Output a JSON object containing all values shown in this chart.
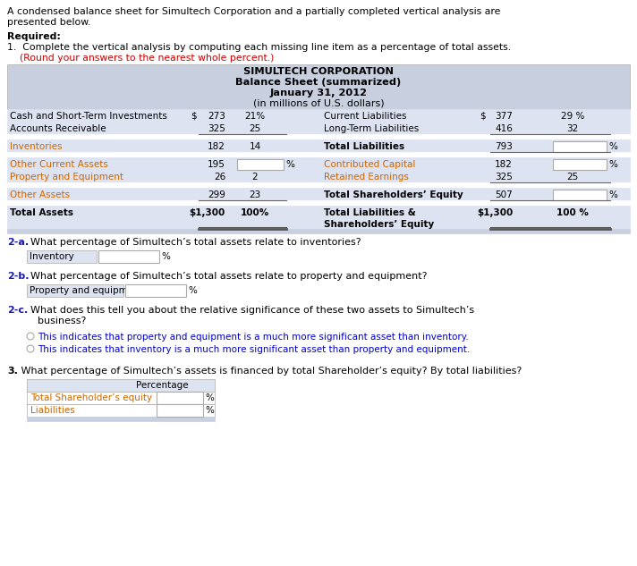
{
  "bg_color": "#ffffff",
  "header_bg": "#c8d0e0",
  "row_bg": "#dde3f0",
  "white": "#ffffff",
  "border_color": "#aaaaaa",
  "dark_border": "#666666",
  "text_black": "#000000",
  "text_blue_bold": "#1a1aaa",
  "text_orange": "#cc6600",
  "text_red": "#cc0000",
  "text_blue": "#0000cc",
  "title1": "SIMULTECH CORPORATION",
  "title2": "Balance Sheet (summarized)",
  "title3": "January 31, 2012",
  "title4": "(in millions of U.S. dollars)",
  "radio1": "This indicates that property and equipment is a much more significant asset than inventory.",
  "radio2": "This indicates that inventory is a much more significant asset than property and equipment.",
  "tbl3_row1": "Total Shareholder’s equity",
  "tbl3_row2": "Liabilities"
}
